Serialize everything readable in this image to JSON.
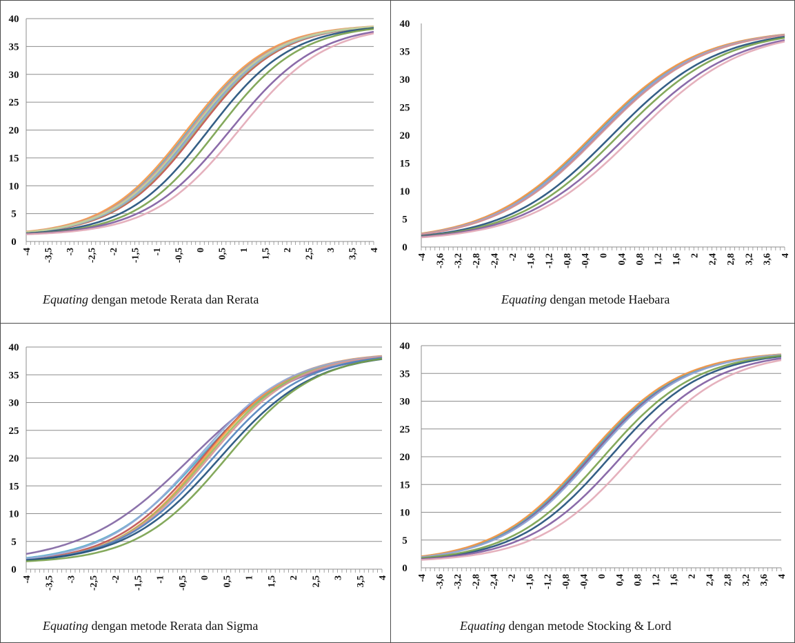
{
  "chart_data": [
    {
      "type": "line",
      "caption_italic": "Equating",
      "caption_rest": " dengan metode Rerata dan Rerata",
      "ylim": [
        0,
        40
      ],
      "yticks": [
        0,
        5,
        10,
        15,
        20,
        25,
        30,
        35,
        40
      ],
      "xlim": [
        -4,
        4
      ],
      "xticks": [
        "-4",
        "-3,5",
        "-3",
        "-2,5",
        "-2",
        "-1,5",
        "-1",
        "-0,5",
        "0",
        "0,5",
        "1",
        "1,5",
        "2",
        "2,5",
        "3",
        "3,5",
        "4"
      ],
      "grid": true,
      "series": [
        {
          "color": "#4f81bd",
          "shift": -0.15,
          "slope": 1.0
        },
        {
          "color": "#c0504d",
          "shift": -0.05,
          "slope": 1.0
        },
        {
          "color": "#9bbb59",
          "shift": -0.1,
          "slope": 1.0
        },
        {
          "color": "#8064a2",
          "shift": -0.2,
          "slope": 1.0
        },
        {
          "color": "#4bacc6",
          "shift": -0.25,
          "slope": 1.0
        },
        {
          "color": "#f79646",
          "shift": -0.3,
          "slope": 1.0
        },
        {
          "color": "#94a9d6",
          "shift": -0.12,
          "slope": 1.0
        },
        {
          "color": "#d99594",
          "shift": -0.22,
          "slope": 1.0
        },
        {
          "color": "#c3d69b",
          "shift": -0.18,
          "slope": 1.0
        },
        {
          "color": "#1f4e79",
          "shift": 0.2,
          "slope": 1.0
        },
        {
          "color": "#77a04a",
          "shift": 0.4,
          "slope": 1.0
        },
        {
          "color": "#7e5ba0",
          "shift": 0.7,
          "slope": 0.95
        },
        {
          "color": "#e2a9b6",
          "shift": 0.9,
          "slope": 0.95
        }
      ]
    },
    {
      "type": "line",
      "caption_italic": "Equating",
      "caption_rest": " dengan metode Haebara",
      "ylim": [
        0,
        40
      ],
      "yticks": [
        0,
        5,
        10,
        15,
        20,
        25,
        30,
        35,
        40
      ],
      "xlim": [
        -4,
        4
      ],
      "xticks": [
        "-4",
        "-3,6",
        "-3,2",
        "-2,8",
        "-2,4",
        "-2",
        "-1,6",
        "-1,2",
        "-0,8",
        "-0,4",
        "0",
        "0,4",
        "0,8",
        "1,2",
        "1,6",
        "2",
        "2,4",
        "2,8",
        "3,2",
        "3,6",
        "4"
      ],
      "grid": false,
      "series": [
        {
          "color": "#4f81bd",
          "shift": -0.1,
          "slope": 0.82
        },
        {
          "color": "#c0504d",
          "shift": -0.15,
          "slope": 0.82
        },
        {
          "color": "#9bbb59",
          "shift": -0.2,
          "slope": 0.82
        },
        {
          "color": "#8064a2",
          "shift": -0.12,
          "slope": 0.82
        },
        {
          "color": "#4bacc6",
          "shift": -0.18,
          "slope": 0.82
        },
        {
          "color": "#f79646",
          "shift": -0.22,
          "slope": 0.82
        },
        {
          "color": "#94a9d6",
          "shift": -0.14,
          "slope": 0.82
        },
        {
          "color": "#d99594",
          "shift": -0.08,
          "slope": 0.82
        },
        {
          "color": "#1f4e79",
          "shift": 0.2,
          "slope": 0.82
        },
        {
          "color": "#77a04a",
          "shift": 0.35,
          "slope": 0.82
        },
        {
          "color": "#7e5ba0",
          "shift": 0.55,
          "slope": 0.8
        },
        {
          "color": "#e2a9b6",
          "shift": 0.7,
          "slope": 0.8
        }
      ]
    },
    {
      "type": "line",
      "caption_italic": "Equating",
      "caption_rest": " dengan metode Rerata dan Sigma",
      "ylim": [
        0,
        40
      ],
      "yticks": [
        0,
        5,
        10,
        15,
        20,
        25,
        30,
        35,
        40
      ],
      "xlim": [
        -4,
        4
      ],
      "xticks": [
        "-4",
        "-3,5",
        "-3",
        "-2,5",
        "-2",
        "-1,5",
        "-1",
        "-0,5",
        "0",
        "0,5",
        "1",
        "1,5",
        "2",
        "2,5",
        "3",
        "3,5",
        "4"
      ],
      "grid": true,
      "series": [
        {
          "color": "#8064a2",
          "shift": -0.3,
          "slope": 0.78
        },
        {
          "color": "#4bacc6",
          "shift": -0.1,
          "slope": 0.88
        },
        {
          "color": "#c0504d",
          "shift": -0.05,
          "slope": 0.95
        },
        {
          "color": "#f79646",
          "shift": 0.0,
          "slope": 0.98
        },
        {
          "color": "#9bbb59",
          "shift": 0.05,
          "slope": 0.96
        },
        {
          "color": "#94a9d6",
          "shift": -0.15,
          "slope": 0.92
        },
        {
          "color": "#d99594",
          "shift": 0.1,
          "slope": 0.95
        },
        {
          "color": "#4f81bd",
          "shift": 0.2,
          "slope": 0.92
        },
        {
          "color": "#1f4e79",
          "shift": 0.35,
          "slope": 0.9
        },
        {
          "color": "#77a04a",
          "shift": 0.5,
          "slope": 0.95
        }
      ]
    },
    {
      "type": "line",
      "caption_italic": "Equating",
      "caption_rest": " dengan metode Stocking & Lord",
      "ylim": [
        0,
        40
      ],
      "yticks": [
        0,
        5,
        10,
        15,
        20,
        25,
        30,
        35,
        40
      ],
      "xlim": [
        -4,
        4
      ],
      "xticks": [
        "-4",
        "-3,6",
        "-3,2",
        "-2,8",
        "-2,4",
        "-2",
        "-1,6",
        "-1,2",
        "-0,8",
        "-0,4",
        "0",
        "0,4",
        "0,8",
        "1,2",
        "1,6",
        "2",
        "2,4",
        "2,8",
        "3,2",
        "3,6",
        "4"
      ],
      "grid": true,
      "series": [
        {
          "color": "#4f81bd",
          "shift": -0.2,
          "slope": 0.92
        },
        {
          "color": "#c0504d",
          "shift": -0.25,
          "slope": 0.92
        },
        {
          "color": "#9bbb59",
          "shift": -0.3,
          "slope": 0.92
        },
        {
          "color": "#8064a2",
          "shift": -0.22,
          "slope": 0.92
        },
        {
          "color": "#4bacc6",
          "shift": -0.28,
          "slope": 0.92
        },
        {
          "color": "#f79646",
          "shift": -0.32,
          "slope": 0.92
        },
        {
          "color": "#94a9d6",
          "shift": -0.18,
          "slope": 0.92
        },
        {
          "color": "#1f4e79",
          "shift": 0.2,
          "slope": 0.92
        },
        {
          "color": "#77a04a",
          "shift": 0.05,
          "slope": 0.92
        },
        {
          "color": "#7e5ba0",
          "shift": 0.45,
          "slope": 0.9
        },
        {
          "color": "#e2a9b6",
          "shift": 0.7,
          "slope": 0.9
        }
      ]
    }
  ]
}
